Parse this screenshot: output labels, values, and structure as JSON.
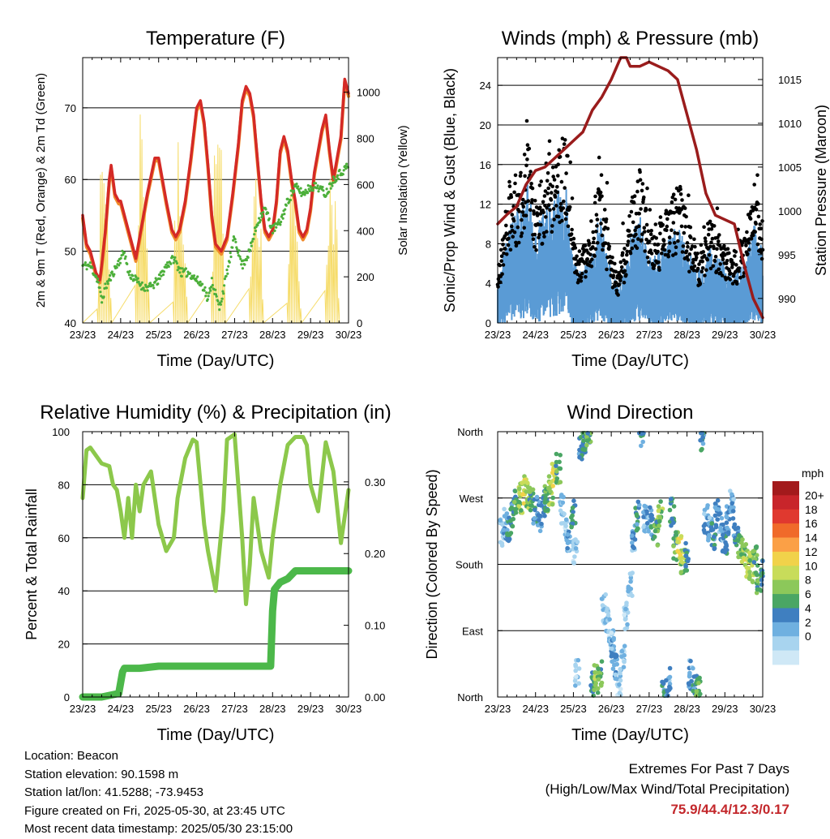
{
  "days": [
    "23/23",
    "24/23",
    "25/23",
    "26/23",
    "27/23",
    "28/23",
    "29/23",
    "30/23"
  ],
  "panels": {
    "temperature": {
      "title": "Temperature (F)",
      "ylabel_left": "2m & 9m T (Red, Orange) & 2m Td (Green)",
      "ylabel_right": "Solar Insolation (Yellow)",
      "xlabel": "Time (Day/UTC)",
      "yticks_left": [
        40,
        50,
        60,
        70
      ],
      "yticks_right": [
        0,
        200,
        400,
        600,
        800,
        1000
      ],
      "ylim_left": [
        40,
        77
      ],
      "ylim_right": [
        0,
        1150
      ]
    },
    "winds": {
      "title": "Winds (mph) & Pressure (mb)",
      "ylabel_left": "Sonic/Prop Wind & Gust (Blue, Black)",
      "ylabel_right": "Station Pressure (Maroon)",
      "xlabel": "Time (Day/UTC)",
      "yticks_left": [
        0,
        4,
        8,
        12,
        16,
        20,
        24
      ],
      "yticks_right": [
        990,
        995,
        1000,
        1005,
        1010,
        1015
      ],
      "ylim_left": [
        0,
        26.8
      ],
      "ylim_right": [
        987.2,
        1017.5
      ]
    },
    "humidity": {
      "title": "Relative Humidity (%) & Precipitation (in)",
      "ylabel_left": "Percent & Total Rainfall",
      "xlabel": "Time (Day/UTC)",
      "yticks_left": [
        0,
        20,
        40,
        60,
        80,
        100
      ],
      "yticks_right": [
        "0.00",
        "0.10",
        "0.20",
        "0.30"
      ],
      "ylim_left": [
        0,
        100
      ],
      "ylim_right": [
        0,
        0.37
      ]
    },
    "direction": {
      "title": "Wind Direction",
      "ylabel_left": "Direction (Colored By Speed)",
      "xlabel": "Time (Day/UTC)",
      "yticks_labels": [
        "North",
        "East",
        "South",
        "West",
        "North"
      ],
      "ylim": [
        0,
        360
      ]
    }
  },
  "colorbar": {
    "unit": "mph",
    "labels": [
      "20+",
      "18",
      "16",
      "14",
      "12",
      "10",
      "8",
      "6",
      "4",
      "2",
      "0"
    ],
    "colors": [
      "#a31a1c",
      "#c8252b",
      "#e0392f",
      "#f06a2a",
      "#fba046",
      "#f1d24a",
      "#c8dc5a",
      "#8cc85a",
      "#4aa664",
      "#3f7fc0",
      "#6fb0e0",
      "#a8d4ef",
      "#cfe8f6"
    ]
  },
  "info": {
    "location": "Location: Beacon",
    "elevation": "Station elevation: 90.1598 m",
    "latlon": "Station lat/lon: 41.5288; -73.9453",
    "created": "Figure created on Fri, 2025-05-30, at 23:45 UTC",
    "recent": "Most recent data timestamp: 2025/05/30 23:15:00"
  },
  "extremes": {
    "line1": "Extremes For Past 7 Days",
    "line2": "(High/Low/Max Wind/Total Precipitation)",
    "values": "75.9/44.4/12.3/0.17"
  },
  "colors": {
    "temp_2m": "#d42a26",
    "temp_9m": "#f08a2a",
    "dewpoint": "#4caf3a",
    "solar": "#f6dc6a",
    "wind": "#5a9bd5",
    "gust": "#000000",
    "pressure": "#9a1c1c",
    "rh": "#8cc84b",
    "precip": "#4cb84a"
  },
  "chart_data": [
    {
      "type": "line",
      "panel": "temperature",
      "x_unit": "days since 23/23",
      "series": [
        {
          "name": "2m & 9m T",
          "color_key": "temp_2m",
          "x": [
            0,
            0.1,
            0.2,
            0.35,
            0.45,
            0.5,
            0.6,
            0.7,
            0.75,
            0.85,
            0.95,
            1.0,
            1.2,
            1.4,
            1.5,
            1.7,
            1.9,
            2.0,
            2.1,
            2.2,
            2.35,
            2.45,
            2.55,
            2.7,
            2.85,
            3.0,
            3.1,
            3.2,
            3.3,
            3.4,
            3.5,
            3.65,
            3.8,
            3.95,
            4.1,
            4.2,
            4.3,
            4.4,
            4.5,
            4.6,
            4.7,
            4.8,
            4.9,
            5.0,
            5.1,
            5.2,
            5.3,
            5.4,
            5.5,
            5.6,
            5.7,
            5.8,
            5.9,
            6.0,
            6.1,
            6.2,
            6.3,
            6.4,
            6.5,
            6.6,
            6.7,
            6.8,
            6.9,
            7.0
          ],
          "y": [
            55,
            51,
            50,
            47,
            46,
            48,
            53,
            60,
            62,
            58,
            57,
            57,
            53,
            49,
            52,
            58,
            63,
            63,
            60,
            57,
            53,
            52,
            53,
            57,
            63,
            70,
            71,
            68,
            62,
            55,
            51,
            50,
            52,
            58,
            65,
            71,
            73,
            72,
            69,
            63,
            57,
            53,
            52,
            53,
            57,
            64,
            66,
            64,
            60,
            57,
            53,
            52,
            53,
            56,
            61,
            64,
            67,
            69,
            64,
            60,
            63,
            66,
            74,
            72
          ]
        },
        {
          "name": "2m Td",
          "color_key": "dewpoint",
          "x": [
            0,
            0.2,
            0.4,
            0.5,
            0.6,
            0.8,
            1.0,
            1.1,
            1.2,
            1.4,
            1.6,
            1.8,
            2.0,
            2.2,
            2.4,
            2.6,
            2.8,
            3.0,
            3.2,
            3.3,
            3.4,
            3.6,
            3.8,
            4.0,
            4.2,
            4.4,
            4.6,
            4.8,
            5.0,
            5.2,
            5.4,
            5.6,
            5.8,
            6.0,
            6.2,
            6.4,
            6.6,
            6.8,
            7.0
          ],
          "y": [
            48,
            48,
            46,
            43,
            45,
            47,
            49,
            50,
            47,
            46,
            45,
            45,
            46,
            48,
            49,
            47,
            47,
            46,
            45,
            43,
            46,
            42,
            47,
            52,
            48,
            50,
            54,
            56,
            53,
            54,
            57,
            59,
            58,
            59,
            59,
            58,
            60,
            61,
            62
          ]
        }
      ]
    },
    {
      "type": "line",
      "panel": "winds",
      "x_unit": "days since 23/23",
      "series": [
        {
          "name": "Station Pressure",
          "color_key": "pressure",
          "x": [
            0,
            0.25,
            0.5,
            0.75,
            1.0,
            1.25,
            1.5,
            1.75,
            2.0,
            2.25,
            2.5,
            2.75,
            3.0,
            3.25,
            3.4,
            3.5,
            3.75,
            4.0,
            4.25,
            4.5,
            4.75,
            5.0,
            5.25,
            5.5,
            5.75,
            6.0,
            6.25,
            6.5,
            6.75,
            7.0
          ],
          "y": [
            998.5,
            999.6,
            1000.5,
            1003.0,
            1004.6,
            1005.0,
            1006.0,
            1007.0,
            1008.0,
            1009.0,
            1011.5,
            1013.0,
            1015.0,
            1017.5,
            1017.5,
            1016.5,
            1016.5,
            1017.0,
            1016.5,
            1016.0,
            1015.0,
            1011.0,
            1007.0,
            1002.0,
            999.5,
            999.0,
            998.5,
            994.0,
            990.0,
            987.8
          ]
        }
      ]
    },
    {
      "type": "line",
      "panel": "humidity",
      "x_unit": "days since 23/23",
      "series": [
        {
          "name": "Relative Humidity",
          "color_key": "rh",
          "axis": "left",
          "x": [
            0,
            0.1,
            0.2,
            0.3,
            0.5,
            0.7,
            0.8,
            0.9,
            1.0,
            1.1,
            1.2,
            1.3,
            1.4,
            1.5,
            1.6,
            1.8,
            2.0,
            2.2,
            2.4,
            2.5,
            2.7,
            2.9,
            3.0,
            3.2,
            3.3,
            3.5,
            3.7,
            3.8,
            4.0,
            4.2,
            4.3,
            4.4,
            4.5,
            4.7,
            4.9,
            5.0,
            5.2,
            5.4,
            5.6,
            5.8,
            5.9,
            6.0,
            6.2,
            6.4,
            6.6,
            6.8,
            7.0
          ],
          "y": [
            75,
            93,
            94,
            92,
            88,
            87,
            80,
            78,
            70,
            60,
            75,
            60,
            80,
            70,
            80,
            85,
            65,
            55,
            60,
            75,
            90,
            97,
            96,
            65,
            55,
            40,
            70,
            97,
            99,
            60,
            35,
            50,
            75,
            55,
            45,
            60,
            80,
            95,
            98,
            98,
            95,
            80,
            70,
            96,
            85,
            58,
            78
          ]
        },
        {
          "name": "Total Rainfall",
          "color_key": "precip",
          "axis": "right",
          "x": [
            0,
            0.5,
            0.95,
            1.05,
            1.1,
            1.5,
            2.0,
            3.0,
            4.0,
            4.95,
            5.0,
            5.05,
            5.2,
            5.4,
            5.6,
            6.0,
            7.0
          ],
          "y": [
            0,
            0,
            0.005,
            0.035,
            0.04,
            0.04,
            0.043,
            0.043,
            0.043,
            0.043,
            0.12,
            0.15,
            0.16,
            0.165,
            0.176,
            0.176,
            0.176
          ]
        }
      ]
    },
    {
      "type": "scatter",
      "panel": "direction",
      "x_unit": "days since 23/23",
      "y_unit": "degrees (North=0/360, East=90, South=180, West=270)",
      "series": [
        {
          "name": "Wind Direction",
          "x": [
            0.1,
            0.2,
            0.3,
            0.4,
            0.5,
            0.6,
            0.7,
            0.8,
            0.9,
            1.0,
            1.1,
            1.2,
            1.3,
            1.4,
            1.5,
            1.6,
            1.7,
            1.8,
            1.9,
            2.0,
            2.05,
            2.1,
            2.2,
            2.3,
            2.4,
            2.5,
            2.6,
            2.7,
            2.8,
            2.9,
            3.0,
            3.05,
            3.1,
            3.2,
            3.3,
            3.4,
            3.5,
            3.6,
            3.7,
            3.8,
            3.9,
            4.0,
            4.1,
            4.2,
            4.3,
            4.4,
            4.5,
            4.6,
            4.7,
            4.8,
            4.9,
            5.0,
            5.1,
            5.2,
            5.3,
            5.4,
            5.5,
            5.6,
            5.7,
            5.8,
            5.9,
            6.0,
            6.1,
            6.2,
            6.3,
            6.4,
            6.5,
            6.6,
            6.7,
            6.8,
            6.9,
            7.0
          ],
          "y": [
            225,
            235,
            230,
            250,
            260,
            270,
            280,
            275,
            265,
            255,
            245,
            260,
            270,
            280,
            300,
            310,
            255,
            230,
            215,
            250,
            200,
            30,
            340,
            350,
            355,
            15,
            25,
            30,
            120,
            100,
            80,
            60,
            40,
            20,
            60,
            110,
            150,
            215,
            245,
            355,
            240,
            240,
            230,
            220,
            250,
            5,
            20,
            250,
            205,
            200,
            185,
            190,
            30,
            20,
            10,
            350,
            240,
            230,
            220,
            250,
            230,
            210,
            240,
            260,
            215,
            205,
            195,
            180,
            175,
            185,
            160,
            170
          ],
          "speed": [
            2,
            4,
            6,
            6,
            8,
            10,
            12,
            10,
            8,
            6,
            4,
            6,
            8,
            10,
            12,
            8,
            2,
            2,
            4,
            6,
            2,
            2,
            6,
            6,
            8,
            6,
            10,
            8,
            2,
            2,
            2,
            4,
            4,
            2,
            2,
            2,
            2,
            4,
            6,
            6,
            4,
            4,
            6,
            8,
            10,
            6,
            4,
            6,
            8,
            12,
            10,
            6,
            4,
            6,
            8,
            6,
            4,
            4,
            6,
            4,
            4,
            6,
            4,
            4,
            6,
            8,
            10,
            12,
            10,
            8,
            8,
            6
          ]
        }
      ]
    }
  ]
}
